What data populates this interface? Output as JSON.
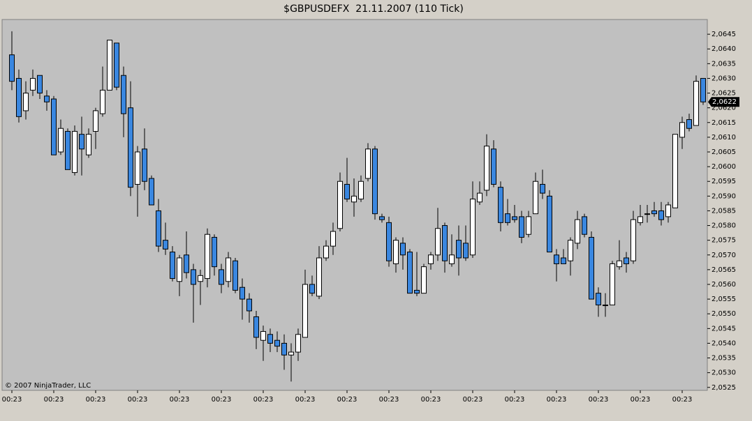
{
  "chart_data": {
    "type": "candlestick",
    "title": "$GBPUSDEFX  21.11.2007 (110 Tick)",
    "copyright": "© 2007 NinjaTrader, LLC",
    "up_color": "#ffffff",
    "down_color": "#3a87e0",
    "categories": [
      "00:23",
      null,
      null,
      null,
      null,
      null,
      "00:23",
      null,
      null,
      null,
      null,
      null,
      "00:23",
      null,
      null,
      null,
      null,
      null,
      "00:23",
      null,
      null,
      null,
      null,
      null,
      "00:23",
      null,
      null,
      null,
      null,
      null,
      "00:23",
      null,
      null,
      null,
      null,
      null,
      "00:23",
      null,
      null,
      null,
      null,
      null,
      "00:23",
      null,
      null,
      null,
      null,
      null,
      "00:23",
      null,
      null,
      null,
      null,
      null,
      "00:23",
      null,
      null,
      null,
      null,
      null,
      "00:23",
      null,
      null,
      null,
      null,
      null,
      "00:23",
      null,
      null,
      null,
      null,
      null,
      "00:23",
      null,
      null,
      null,
      null,
      null,
      "00:23",
      null,
      null,
      null,
      null,
      null,
      "00:23",
      null,
      null,
      null,
      null,
      null,
      "00:23",
      null,
      null,
      null,
      null,
      null,
      "00:23",
      null,
      null,
      null
    ],
    "open": [
      2.0638,
      2.063,
      2.0619,
      2.0626,
      2.0631,
      2.0624,
      2.0623,
      2.0605,
      2.0612,
      2.0598,
      2.0611,
      2.0604,
      2.0612,
      2.0618,
      2.0626,
      2.0642,
      2.0631,
      2.062,
      2.0594,
      2.0606,
      2.0596,
      2.0585,
      2.0575,
      2.0571,
      2.0561,
      2.057,
      2.0565,
      2.0561,
      2.0562,
      2.0576,
      2.0565,
      2.0561,
      2.0568,
      2.0559,
      2.0555,
      2.0549,
      2.0541,
      2.0543,
      2.0541,
      2.054,
      2.0536,
      2.0537,
      2.0542,
      2.056,
      2.0556,
      2.0569,
      2.0573,
      2.0579,
      2.0594,
      2.0588,
      2.0589,
      2.0596,
      2.0606,
      2.0583,
      2.0581,
      2.0567,
      2.0574,
      2.0571,
      2.0558,
      2.0557,
      2.0567,
      2.057,
      2.058,
      2.0567,
      2.0575,
      2.0574,
      2.057,
      2.0588,
      2.0592,
      2.0606,
      2.0593,
      2.0584,
      2.0583,
      2.0583,
      2.0577,
      2.0584,
      2.0594,
      2.059,
      2.057,
      2.0569,
      2.0568,
      2.0574,
      2.0583,
      2.0576,
      2.0557,
      2.0553,
      2.0553,
      2.0566,
      2.0569,
      2.0568,
      2.0581,
      2.0584,
      2.0585,
      2.0585,
      2.0583,
      2.0586,
      2.061,
      2.0616,
      2.0614,
      2.063
    ],
    "high": [
      2.0646,
      2.0633,
      2.0629,
      2.0633,
      2.0631,
      2.0626,
      2.0624,
      2.0616,
      2.0613,
      2.0614,
      2.0617,
      2.0613,
      2.062,
      2.0634,
      2.0643,
      2.0642,
      2.0634,
      2.0629,
      2.0607,
      2.0613,
      2.0597,
      2.0589,
      2.0581,
      2.0573,
      2.057,
      2.0578,
      2.0567,
      2.0565,
      2.0579,
      2.0577,
      2.0567,
      2.0571,
      2.0569,
      2.0562,
      2.0557,
      2.0551,
      2.0546,
      2.0545,
      2.0544,
      2.0543,
      2.054,
      2.0545,
      2.0565,
      2.0563,
      2.0573,
      2.0575,
      2.0581,
      2.0598,
      2.0603,
      2.0596,
      2.0597,
      2.0608,
      2.0607,
      2.0584,
      2.0583,
      2.0576,
      2.0576,
      2.0572,
      2.0571,
      2.0567,
      2.0571,
      2.0586,
      2.0581,
      2.0577,
      2.058,
      2.058,
      2.0595,
      2.0595,
      2.0611,
      2.0609,
      2.0595,
      2.0589,
      2.0587,
      2.0585,
      2.0585,
      2.0598,
      2.0599,
      2.0592,
      2.0572,
      2.0572,
      2.0576,
      2.0585,
      2.0584,
      2.0578,
      2.0559,
      2.0557,
      2.0568,
      2.0575,
      2.0571,
      2.0585,
      2.0587,
      2.0587,
      2.0588,
      2.0588,
      2.0588,
      2.0611,
      2.0617,
      2.0618,
      2.0631,
      2.063
    ],
    "low": [
      2.0626,
      2.0615,
      2.0616,
      2.0624,
      2.0623,
      2.0619,
      2.0604,
      2.0604,
      2.0599,
      2.0597,
      2.0597,
      2.0603,
      2.0606,
      2.0617,
      2.0626,
      2.0626,
      2.061,
      2.059,
      2.0583,
      2.0592,
      2.0587,
      2.0571,
      2.057,
      2.0561,
      2.0556,
      2.0562,
      2.0547,
      2.0553,
      2.0559,
      2.0563,
      2.0557,
      2.0559,
      2.0557,
      2.0548,
      2.0547,
      2.0538,
      2.0534,
      2.0537,
      2.0537,
      2.0531,
      2.0527,
      2.0534,
      2.0542,
      2.0556,
      2.0555,
      2.0568,
      2.057,
      2.0578,
      2.0588,
      2.0583,
      2.0588,
      2.0595,
      2.0582,
      2.0581,
      2.0566,
      2.0564,
      2.0565,
      2.0557,
      2.0556,
      2.0557,
      2.0565,
      2.0568,
      2.0564,
      2.0566,
      2.0563,
      2.0568,
      2.0569,
      2.0587,
      2.059,
      2.0593,
      2.0578,
      2.058,
      2.0581,
      2.0574,
      2.0576,
      2.0584,
      2.0589,
      2.0571,
      2.0561,
      2.0567,
      2.0563,
      2.0572,
      2.0576,
      2.0555,
      2.0549,
      2.0549,
      2.0553,
      2.0565,
      2.0564,
      2.0567,
      2.058,
      2.0581,
      2.0583,
      2.058,
      2.0581,
      2.0586,
      2.0606,
      2.0612,
      2.0614,
      2.0621
    ],
    "close": [
      2.0629,
      2.0617,
      2.0625,
      2.063,
      2.0625,
      2.0622,
      2.0604,
      2.0613,
      2.0599,
      2.0612,
      2.0606,
      2.0611,
      2.0619,
      2.0626,
      2.0643,
      2.0627,
      2.0618,
      2.0593,
      2.0605,
      2.0595,
      2.0587,
      2.0573,
      2.0572,
      2.0562,
      2.0569,
      2.0564,
      2.056,
      2.0563,
      2.0577,
      2.0566,
      2.056,
      2.0569,
      2.0558,
      2.0555,
      2.0551,
      2.0542,
      2.0544,
      2.054,
      2.0539,
      2.0536,
      2.0537,
      2.0543,
      2.056,
      2.0557,
      2.0569,
      2.0573,
      2.0578,
      2.0595,
      2.0589,
      2.059,
      2.0595,
      2.0606,
      2.0584,
      2.0582,
      2.0568,
      2.0575,
      2.057,
      2.0557,
      2.0557,
      2.0566,
      2.057,
      2.0579,
      2.0568,
      2.057,
      2.0569,
      2.0569,
      2.0589,
      2.0591,
      2.0607,
      2.0594,
      2.0581,
      2.0581,
      2.0582,
      2.0576,
      2.0583,
      2.0595,
      2.0591,
      2.0571,
      2.0567,
      2.0567,
      2.0575,
      2.0582,
      2.0577,
      2.0555,
      2.0553,
      2.0553,
      2.0567,
      2.0568,
      2.0567,
      2.0582,
      2.0583,
      2.0584,
      2.0584,
      2.0582,
      2.0587,
      2.0611,
      2.0615,
      2.0613,
      2.0629,
      2.0622
    ],
    "ylim": [
      2.0524,
      2.065
    ],
    "yticks": [
      {
        "value": 2.0525,
        "label": "2,0525"
      },
      {
        "value": 2.053,
        "label": "2,0530"
      },
      {
        "value": 2.0535,
        "label": "2,0535"
      },
      {
        "value": 2.054,
        "label": "2,0540"
      },
      {
        "value": 2.0545,
        "label": "2,0545"
      },
      {
        "value": 2.055,
        "label": "2,0550"
      },
      {
        "value": 2.0555,
        "label": "2,0555"
      },
      {
        "value": 2.056,
        "label": "2,0560"
      },
      {
        "value": 2.0565,
        "label": "2,0565"
      },
      {
        "value": 2.057,
        "label": "2,0570"
      },
      {
        "value": 2.0575,
        "label": "2,0575"
      },
      {
        "value": 2.058,
        "label": "2,0580"
      },
      {
        "value": 2.0585,
        "label": "2,0585"
      },
      {
        "value": 2.059,
        "label": "2,0590"
      },
      {
        "value": 2.0595,
        "label": "2,0595"
      },
      {
        "value": 2.06,
        "label": "2,0600"
      },
      {
        "value": 2.0605,
        "label": "2,0605"
      },
      {
        "value": 2.061,
        "label": "2,0610"
      },
      {
        "value": 2.0615,
        "label": "2,0615"
      },
      {
        "value": 2.062,
        "label": "2,0620"
      },
      {
        "value": 2.0625,
        "label": "2,0625"
      },
      {
        "value": 2.063,
        "label": "2,0630"
      },
      {
        "value": 2.0635,
        "label": "2,0635"
      },
      {
        "value": 2.064,
        "label": "2,0640"
      },
      {
        "value": 2.0645,
        "label": "2,0645"
      }
    ],
    "last_price": {
      "value": 2.0622,
      "label": "2,0622"
    }
  }
}
